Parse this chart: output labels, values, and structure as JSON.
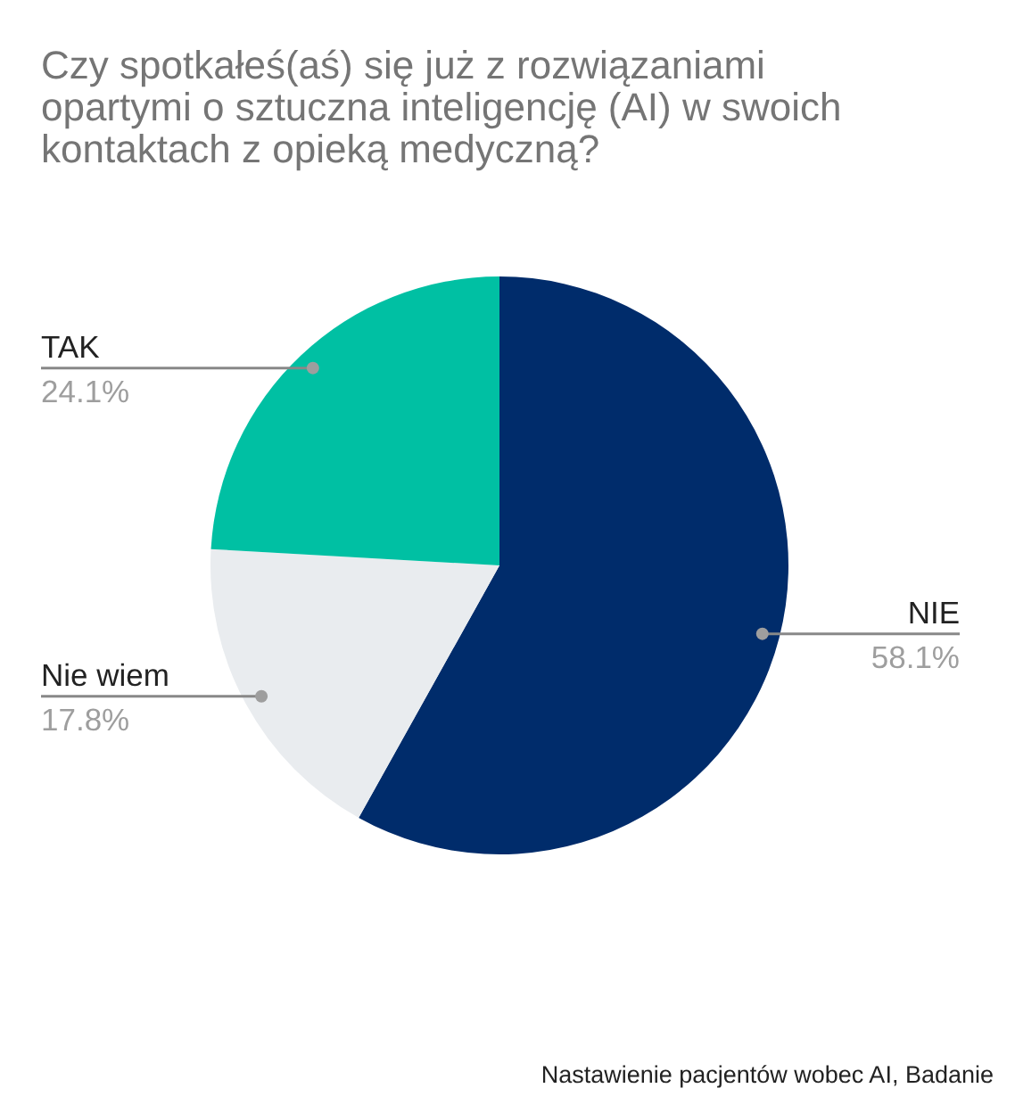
{
  "chart_data": {
    "type": "pie",
    "title": "Czy spotkałeś(aś) się już z rozwiązaniami opartymi o sztuczna inteligencję (AI) w swoich kontaktach z opieką medyczną?",
    "categories": [
      "NIE",
      "Nie wiem",
      "TAK"
    ],
    "values": [
      58.1,
      17.8,
      24.1
    ],
    "colors": [
      "#002c6b",
      "#e9ecef",
      "#00c0a3"
    ],
    "value_labels": [
      "58.1%",
      "17.8%",
      "24.1%"
    ],
    "annotations": [
      "Nastawienie pacjentów wobec AI, Badanie"
    ]
  }
}
